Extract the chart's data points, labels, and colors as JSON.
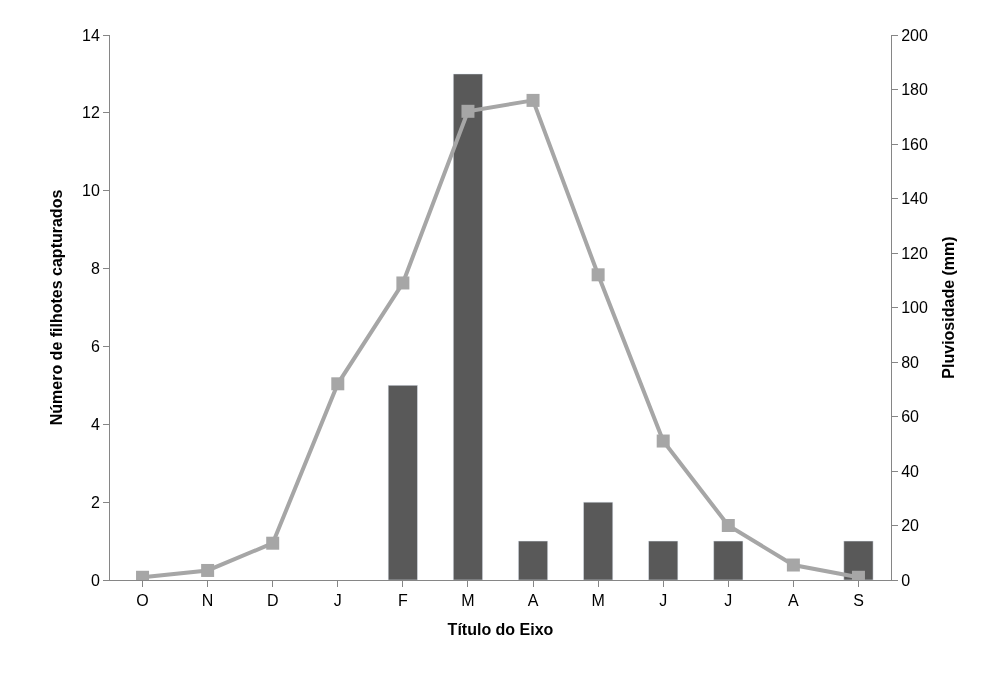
{
  "chart_data": {
    "type": "bar",
    "xlabel": "Título do Eixo",
    "ylabel": "Número de filhotes capturados",
    "y2label": "Pluviosidade (mm)",
    "categories": [
      "O",
      "N",
      "D",
      "J",
      "F",
      "M",
      "A",
      "M",
      "J",
      "J",
      "A",
      "S"
    ],
    "series": [
      {
        "color": "#595959",
        "values": [
          null,
          null,
          null,
          null,
          5,
          13,
          1,
          2,
          1,
          1,
          null,
          1
        ]
      },
      {
        "type": "line",
        "axis": "y2",
        "color": "#a6a6a6",
        "marker": "square",
        "values": [
          1,
          3.5,
          13.5,
          72,
          109,
          172,
          176,
          112,
          51,
          20,
          5.5,
          1
        ]
      }
    ],
    "ylim": [
      0,
      14
    ],
    "yticks": [
      0,
      2,
      4,
      6,
      8,
      10,
      12,
      14
    ],
    "y2lim": [
      0,
      200
    ],
    "y2ticks": [
      0,
      20,
      40,
      60,
      80,
      100,
      120,
      140,
      160,
      180,
      200
    ]
  }
}
